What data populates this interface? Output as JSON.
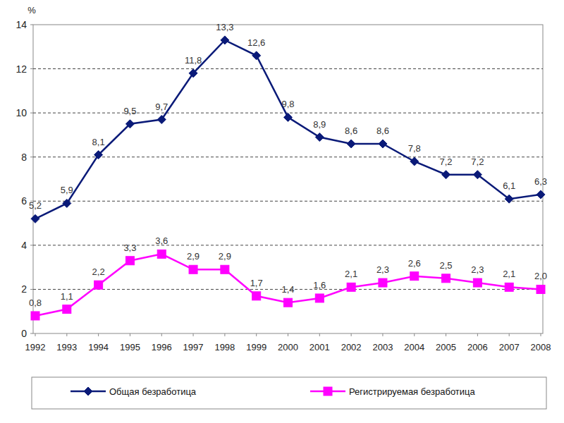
{
  "chart_data": {
    "type": "line",
    "y_label": "%",
    "categories": [
      "1992",
      "1993",
      "1994",
      "1995",
      "1996",
      "1997",
      "1998",
      "1999",
      "2000",
      "2001",
      "2002",
      "2003",
      "2004",
      "2005",
      "2006",
      "2007",
      "2008"
    ],
    "series": [
      {
        "name": "Общая безработица",
        "color": "#0a1a78",
        "marker": "diamond",
        "line_style": "solid",
        "values": [
          5.2,
          5.9,
          8.1,
          9.5,
          9.7,
          11.8,
          13.3,
          12.6,
          9.8,
          8.9,
          8.6,
          8.6,
          7.8,
          7.2,
          7.2,
          6.1,
          6.3
        ],
        "value_labels": [
          "5,2",
          "5,9",
          "8,1",
          "9,5",
          "9,7",
          "11,8",
          "13,3",
          "12,6",
          "9,8",
          "8,9",
          "8,6",
          "8,6",
          "7,8",
          "7,2",
          "7,2",
          "6,1",
          "6,3"
        ]
      },
      {
        "name": "Регистрируемая безработица",
        "color": "#ff00ff",
        "marker": "square",
        "line_style": "solid",
        "values": [
          0.8,
          1.1,
          2.2,
          3.3,
          3.6,
          2.9,
          2.9,
          1.7,
          1.4,
          1.6,
          2.1,
          2.3,
          2.6,
          2.5,
          2.3,
          2.1,
          2.0
        ],
        "value_labels": [
          "0,8",
          "1,1",
          "2,2",
          "3,3",
          "3,6",
          "2,9",
          "2,9",
          "1,7",
          "1,4",
          "1,6",
          "2,1",
          "2,3",
          "2,6",
          "2,5",
          "2,3",
          "2,1",
          "2,0"
        ]
      }
    ],
    "ylim": [
      0,
      14
    ],
    "yticks": [
      0,
      2,
      4,
      6,
      8,
      10,
      12,
      14
    ],
    "grid": true,
    "data_labels": true,
    "legend": "bottom"
  }
}
